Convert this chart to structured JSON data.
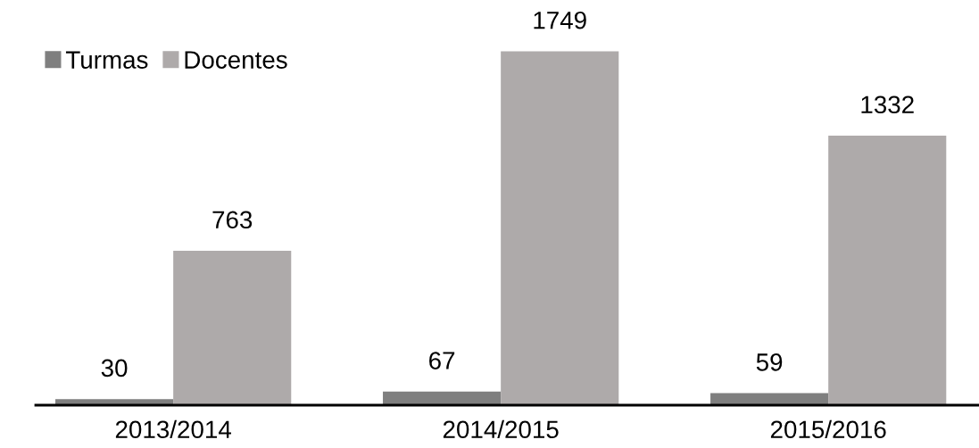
{
  "chart_data": {
    "type": "bar",
    "categories": [
      "2013/2014",
      "2014/2015",
      "2015/2016"
    ],
    "series": [
      {
        "name": "Turmas",
        "color": "#7f7f7f",
        "values": [
          30,
          67,
          59
        ]
      },
      {
        "name": "Docentes",
        "color": "#aeaaaa",
        "values": [
          763,
          1749,
          1332
        ]
      }
    ],
    "tick_labels": "x",
    "data_labels": true,
    "legend": "top left",
    "grid": false
  }
}
